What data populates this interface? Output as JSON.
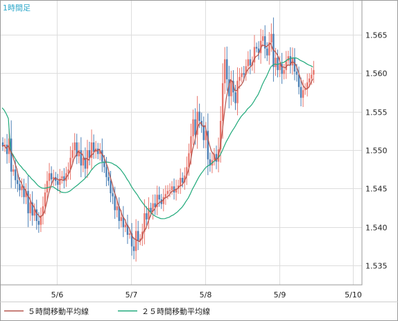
{
  "chart_data": {
    "type": "candlestick",
    "timeframe_label": "1時間足",
    "y_ticks": [
      "1.565",
      "1.560",
      "1.555",
      "1.550",
      "1.545",
      "1.540",
      "1.535"
    ],
    "ylim": [
      1.5325,
      1.5695
    ],
    "x_ticks": [
      {
        "label": "5/6",
        "index": 26
      },
      {
        "label": "5/7",
        "index": 61
      },
      {
        "label": "5/8",
        "index": 96
      },
      {
        "label": "5/9",
        "index": 131
      },
      {
        "label": "5/10",
        "index": 166
      }
    ],
    "grid": true,
    "colors": {
      "up_candle": "#e8756c",
      "down_candle": "#4a7fb5",
      "ma5": "#b5524a",
      "ma25": "#1fa97a",
      "grid": "#dddddd",
      "frame": "#999999",
      "timeframe_text": "#2aa6c9"
    },
    "series": [
      {
        "name": "５時間移動平均線",
        "color": "#b5524a"
      },
      {
        "name": "２５時間移動平均線",
        "color": "#1fa97a"
      }
    ],
    "close_prices": [
      1.5505,
      1.5507,
      1.5495,
      1.5515,
      1.5472,
      1.5475,
      1.5461,
      1.5456,
      1.5448,
      1.5453,
      1.5439,
      1.5447,
      1.5418,
      1.5432,
      1.5415,
      1.5423,
      1.5408,
      1.5403,
      1.5415,
      1.5427,
      1.5445,
      1.546,
      1.547,
      1.5462,
      1.5465,
      1.546,
      1.5455,
      1.5463,
      1.5466,
      1.546,
      1.547,
      1.5475,
      1.549,
      1.55,
      1.551,
      1.5492,
      1.55,
      1.548,
      1.549,
      1.5476,
      1.55,
      1.549,
      1.551,
      1.5498,
      1.5502,
      1.5495,
      1.55,
      1.5485,
      1.5478,
      1.5465,
      1.546,
      1.5444,
      1.544,
      1.5422,
      1.5427,
      1.5408,
      1.5413,
      1.54,
      1.5403,
      1.539,
      1.5392,
      1.5375,
      1.5369,
      1.5395,
      1.5382,
      1.5385,
      1.5394,
      1.5418,
      1.541,
      1.5425,
      1.542,
      1.5431,
      1.5426,
      1.5442,
      1.5436,
      1.543,
      1.5439,
      1.5443,
      1.5447,
      1.5448,
      1.5453,
      1.5445,
      1.545,
      1.5454,
      1.5464,
      1.5458,
      1.5467,
      1.5478,
      1.5496,
      1.5518,
      1.554,
      1.552,
      1.555,
      1.5538,
      1.5532,
      1.5513,
      1.5525,
      1.5488,
      1.548,
      1.5487,
      1.5495,
      1.5485,
      1.5501,
      1.5538,
      1.5587,
      1.5618,
      1.5592,
      1.557,
      1.559,
      1.5575,
      1.5561,
      1.559,
      1.5595,
      1.56,
      1.5598,
      1.5609,
      1.5618,
      1.561,
      1.5614,
      1.5634,
      1.5632,
      1.5626,
      1.5642,
      1.5648,
      1.5632,
      1.5623,
      1.564,
      1.5651,
      1.5608,
      1.562,
      1.5604,
      1.5612,
      1.5599,
      1.5604,
      1.5616,
      1.5622,
      1.561,
      1.562,
      1.5602,
      1.5598,
      1.5582,
      1.5568,
      1.5578,
      1.558,
      1.5588,
      1.5593,
      1.5598,
      1.5604
    ]
  }
}
